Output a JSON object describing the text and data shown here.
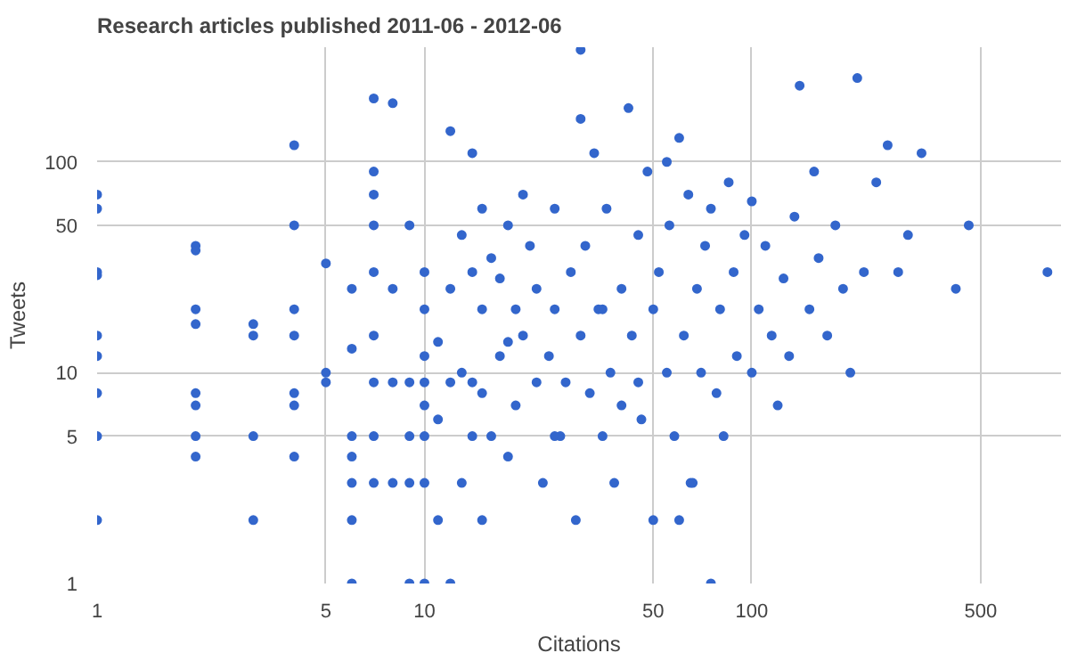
{
  "chart_data": {
    "type": "scatter",
    "title": "Research articles published 2011-06 - 2012-06",
    "xlabel": "Citations",
    "ylabel": "Tweets",
    "log": "xy",
    "grid": true,
    "marker": "circle",
    "xlim": [
      1,
      880
    ],
    "ylim": [
      1,
      350
    ],
    "xticks": [
      1,
      5,
      10,
      50,
      100,
      500
    ],
    "yticks": [
      1,
      5,
      10,
      50,
      100
    ],
    "series": [
      {
        "color": "#3366cc",
        "x": [
          1,
          1,
          1,
          1,
          1,
          1,
          1,
          1,
          1,
          2,
          2,
          2,
          2,
          2,
          2,
          2,
          2,
          3,
          3,
          3,
          3,
          4,
          4,
          4,
          4,
          4,
          4,
          4,
          5,
          5,
          5,
          6,
          6,
          6,
          6,
          6,
          6,
          6,
          7,
          7,
          7,
          7,
          7,
          7,
          7,
          7,
          7,
          8,
          8,
          8,
          8,
          9,
          9,
          9,
          9,
          9,
          10,
          10,
          10,
          10,
          10,
          10,
          10,
          10,
          11,
          11,
          11,
          12,
          12,
          12,
          12,
          13,
          13,
          13,
          14,
          14,
          14,
          15,
          15,
          15,
          15,
          16,
          16,
          17,
          17,
          18,
          18,
          19,
          19,
          20,
          20,
          21,
          22,
          22,
          23,
          24,
          25,
          25,
          26,
          27,
          28,
          29,
          30,
          30,
          31,
          32,
          33,
          34,
          35,
          36,
          37,
          38,
          40,
          40,
          42,
          43,
          45,
          46,
          48,
          50,
          50,
          52,
          55,
          56,
          58,
          60,
          62,
          64,
          66,
          68,
          70,
          72,
          75,
          78,
          80,
          82,
          85,
          88,
          90,
          95,
          100,
          100,
          105,
          110,
          115,
          120,
          125,
          130,
          135,
          140,
          150,
          155,
          160,
          170,
          180,
          190,
          200,
          210,
          220,
          240,
          260,
          280,
          300,
          330,
          420,
          460,
          800,
          30,
          35,
          45,
          55,
          65,
          75,
          60,
          25,
          18,
          14
        ],
        "values": [
          70,
          60,
          30,
          29,
          15,
          12,
          8,
          5,
          2,
          40,
          38,
          20,
          17,
          8,
          7,
          5,
          4,
          17,
          15,
          5,
          2,
          120,
          50,
          20,
          15,
          8,
          7,
          4,
          33,
          10,
          9,
          25,
          13,
          5,
          4,
          3,
          2,
          1,
          200,
          90,
          70,
          50,
          30,
          15,
          9,
          5,
          3,
          190,
          25,
          9,
          3,
          50,
          9,
          5,
          3,
          1,
          30,
          20,
          12,
          9,
          7,
          5,
          3,
          1,
          14,
          6,
          2,
          140,
          25,
          9,
          1,
          45,
          10,
          3,
          110,
          30,
          5,
          60,
          20,
          8,
          2,
          35,
          5,
          28,
          12,
          50,
          4,
          20,
          7,
          70,
          15,
          40,
          25,
          9,
          3,
          12,
          60,
          20,
          5,
          9,
          30,
          2,
          340,
          15,
          40,
          8,
          110,
          20,
          5,
          60,
          10,
          3,
          25,
          7,
          180,
          15,
          45,
          6,
          90,
          20,
          2,
          30,
          10,
          50,
          5,
          130,
          15,
          70,
          3,
          25,
          10,
          40,
          60,
          8,
          20,
          5,
          80,
          30,
          12,
          45,
          65,
          10,
          20,
          40,
          15,
          7,
          28,
          12,
          55,
          230,
          20,
          90,
          35,
          15,
          50,
          25,
          10,
          250,
          30,
          80,
          120,
          30,
          45,
          110,
          25,
          50,
          30,
          160,
          20,
          9,
          100,
          3,
          1,
          2,
          5,
          14,
          9
        ]
      }
    ]
  }
}
